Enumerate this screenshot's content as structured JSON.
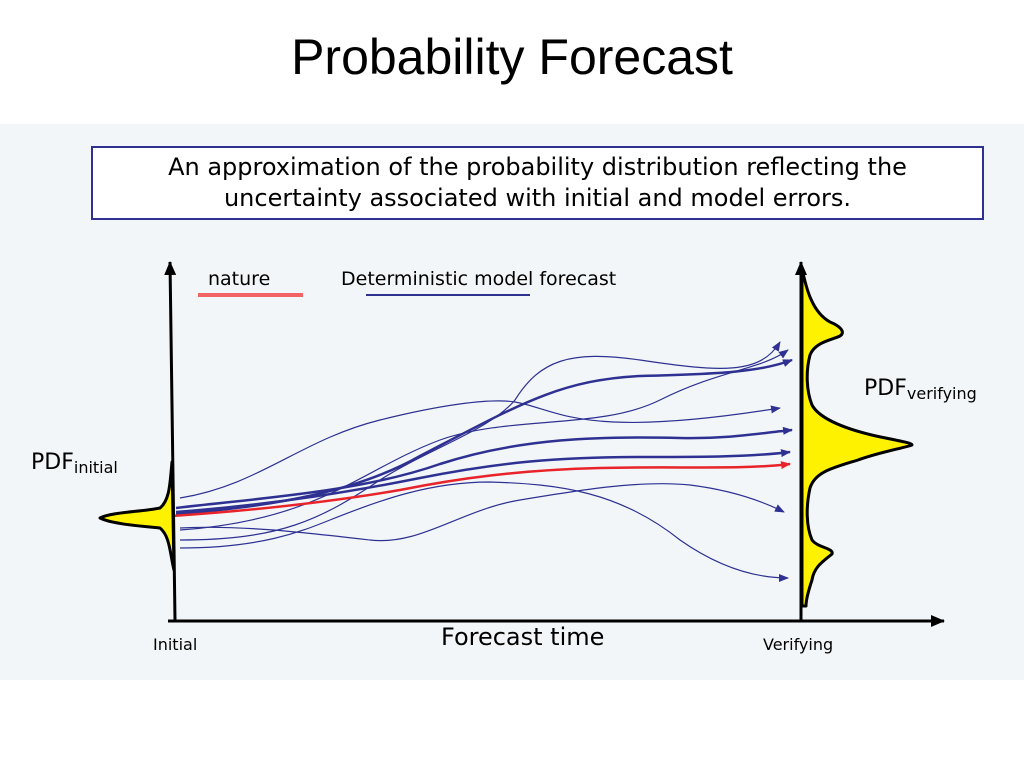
{
  "slide": {
    "title": "Probability Forecast",
    "definition_line1": "An approximation of the probability distribution reflecting the",
    "definition_line2": "uncertainty associated with initial and model errors."
  },
  "legend": {
    "nature": "nature",
    "deterministic": "Deterministic model forecast"
  },
  "labels": {
    "pdf_main": "PDF",
    "pdf_initial_sub": "initial",
    "pdf_verifying_sub": "verifying",
    "x_axis_title": "Forecast time",
    "x_start": "Initial",
    "x_end": "Verifying"
  },
  "colors": {
    "nature": "#e8232a",
    "deterministic": "#2e3192",
    "pdf_fill": "#fff200",
    "box_border": "#2e3192",
    "panel": "#f3f6f8"
  }
}
